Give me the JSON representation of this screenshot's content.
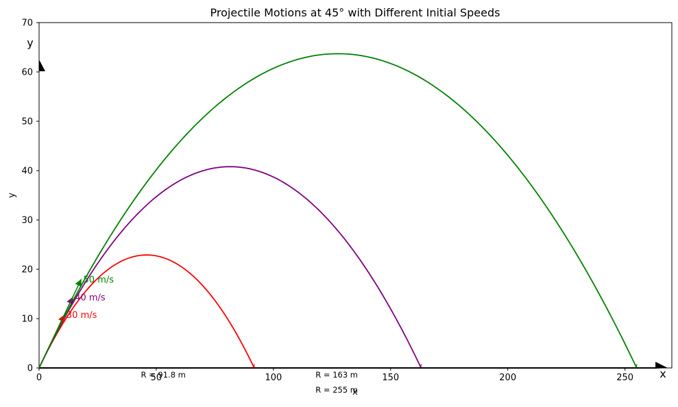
{
  "chart_data": {
    "type": "line",
    "title": "Projectile Motions at 45° with Different Initial Speeds",
    "xlabel": "x",
    "ylabel": "y",
    "xlim": [
      0,
      270
    ],
    "ylim": [
      0,
      70
    ],
    "xticks": [
      0,
      50,
      100,
      150,
      200,
      250
    ],
    "yticks": [
      0,
      10,
      20,
      30,
      40,
      50,
      60,
      70
    ],
    "grid": false,
    "axis_arrow_labels": {
      "x": "x",
      "y": "y"
    },
    "series": [
      {
        "name": "30 m/s",
        "color": "#ff0000",
        "speed": 30,
        "range": 91.8,
        "max_height": 22.9,
        "range_label": "R = 91.8 m"
      },
      {
        "name": "40 m/s",
        "color": "#800080",
        "speed": 40,
        "range": 163,
        "max_height": 40.8,
        "range_label": "R = 163 m"
      },
      {
        "name": "50 m/s",
        "color": "#008000",
        "speed": 50,
        "range": 255,
        "max_height": 63.7,
        "range_label": "R = 255 m"
      }
    ]
  }
}
